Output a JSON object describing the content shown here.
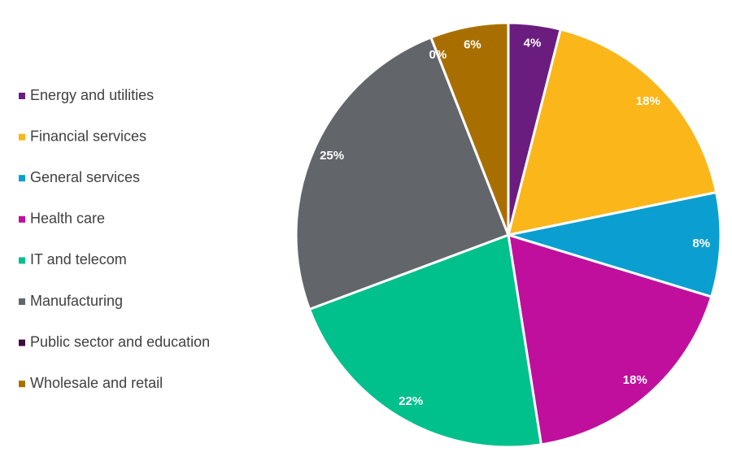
{
  "chart_data": {
    "type": "pie",
    "categories": [
      "Energy and utilities",
      "Financial services",
      "General services",
      "Health care",
      "IT and telecom",
      "Manufacturing",
      "Public sector and education",
      "Wholesale and retail"
    ],
    "values": [
      4,
      18,
      8,
      18,
      22,
      25,
      0,
      6
    ],
    "value_labels": [
      "4%",
      "18%",
      "8%",
      "18%",
      "22%",
      "25%",
      "0%",
      "6%"
    ],
    "colors": [
      "#6a1d7f",
      "#fbb61a",
      "#0a9fd0",
      "#c00f9c",
      "#00c08b",
      "#62666a",
      "#3b1040",
      "#a86f00"
    ],
    "legend": "left"
  }
}
